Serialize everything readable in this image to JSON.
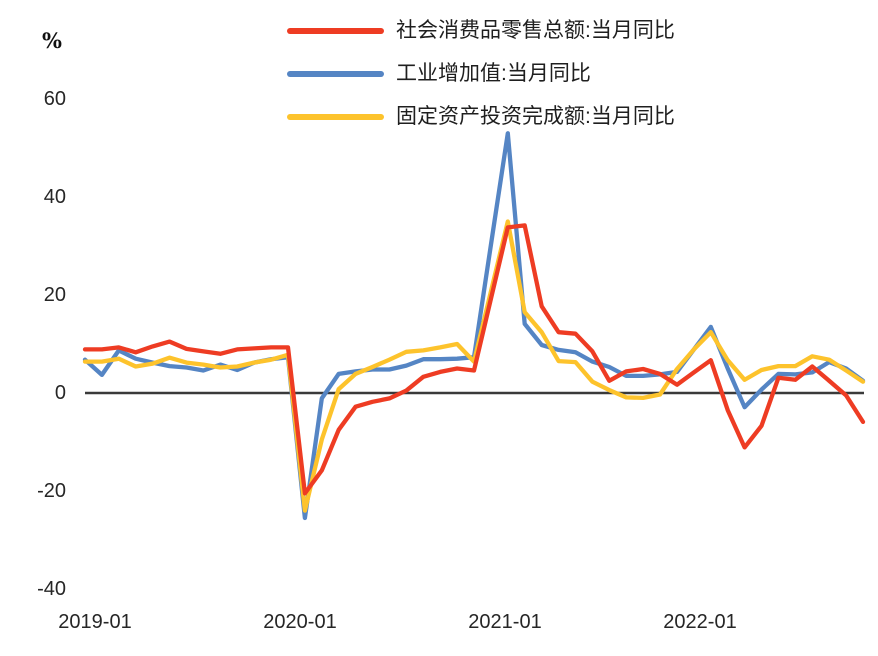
{
  "unit_label": "%",
  "chart_data": {
    "type": "line",
    "title": "",
    "xlabel": "",
    "ylabel": "%",
    "ylim": [
      -40,
      62
    ],
    "grid": false,
    "legend_position": "top-center",
    "axis_line_color": "#3a3a3a",
    "x": [
      "2019-01",
      "2019-02",
      "2019-03",
      "2019-04",
      "2019-05",
      "2019-06",
      "2019-07",
      "2019-08",
      "2019-09",
      "2019-10",
      "2019-11",
      "2019-12",
      "2020-01",
      "2020-02",
      "2020-03",
      "2020-04",
      "2020-05",
      "2020-06",
      "2020-07",
      "2020-08",
      "2020-09",
      "2020-10",
      "2020-11",
      "2020-12",
      "2021-01",
      "2021-02",
      "2021-03",
      "2021-04",
      "2021-05",
      "2021-06",
      "2021-07",
      "2021-08",
      "2021-09",
      "2021-10",
      "2021-11",
      "2021-12",
      "2022-01",
      "2022-02",
      "2022-03",
      "2022-04",
      "2022-05",
      "2022-06",
      "2022-07",
      "2022-08",
      "2022-09",
      "2022-10",
      "2022-11"
    ],
    "x_tick_labels": [
      "2019-01",
      "2020-01",
      "2021-01",
      "2022-01"
    ],
    "y_tick_labels": [
      "60",
      "40",
      "20",
      "0",
      "-20",
      "-40"
    ],
    "y_ticks": [
      60,
      40,
      20,
      0,
      -20,
      -40
    ],
    "series": [
      {
        "name": "社会消费品零售总额:当月同比",
        "color": "#EE3C23",
        "values": [
          8.9,
          8.9,
          9.3,
          8.3,
          9.5,
          10.5,
          9.0,
          8.5,
          8.0,
          8.9,
          9.1,
          9.3,
          9.3,
          -20.5,
          -15.8,
          -7.5,
          -2.8,
          -1.8,
          -1.1,
          0.5,
          3.3,
          4.3,
          5.0,
          4.6,
          19.2,
          33.8,
          34.2,
          17.7,
          12.4,
          12.1,
          8.5,
          2.5,
          4.4,
          4.9,
          3.9,
          1.7,
          4.2,
          6.7,
          -3.5,
          -11.1,
          -6.7,
          3.1,
          2.7,
          5.4,
          2.5,
          -0.5,
          -5.9
        ]
      },
      {
        "name": "工业增加值:当月同比",
        "color": "#5585C4",
        "values": [
          6.8,
          3.7,
          8.7,
          7.0,
          6.2,
          5.5,
          5.2,
          4.6,
          5.8,
          4.7,
          6.2,
          6.9,
          7.3,
          -25.5,
          -1.1,
          3.9,
          4.4,
          4.8,
          4.8,
          5.6,
          6.9,
          6.9,
          7.0,
          7.3,
          30.2,
          53.0,
          14.1,
          9.8,
          8.8,
          8.3,
          6.4,
          5.3,
          3.5,
          3.5,
          3.8,
          4.3,
          8.9,
          13.5,
          5.0,
          -2.9,
          0.7,
          3.9,
          3.8,
          4.2,
          6.3,
          5.0,
          2.5
        ]
      },
      {
        "name": "固定资产投资完成额:当月同比",
        "color": "#FDC32C",
        "values": [
          6.4,
          6.4,
          7.0,
          5.4,
          6.0,
          7.2,
          6.2,
          5.8,
          5.2,
          5.4,
          6.2,
          6.8,
          7.8,
          -24.0,
          -9.5,
          0.8,
          3.9,
          5.3,
          6.8,
          8.4,
          8.7,
          9.3,
          10.0,
          6.4,
          20.7,
          35.0,
          16.5,
          12.4,
          6.5,
          6.3,
          2.3,
          0.6,
          -0.9,
          -1.0,
          -0.3,
          4.9,
          8.9,
          12.4,
          6.7,
          2.7,
          4.7,
          5.5,
          5.5,
          7.5,
          6.8,
          4.6,
          2.3
        ]
      }
    ]
  }
}
